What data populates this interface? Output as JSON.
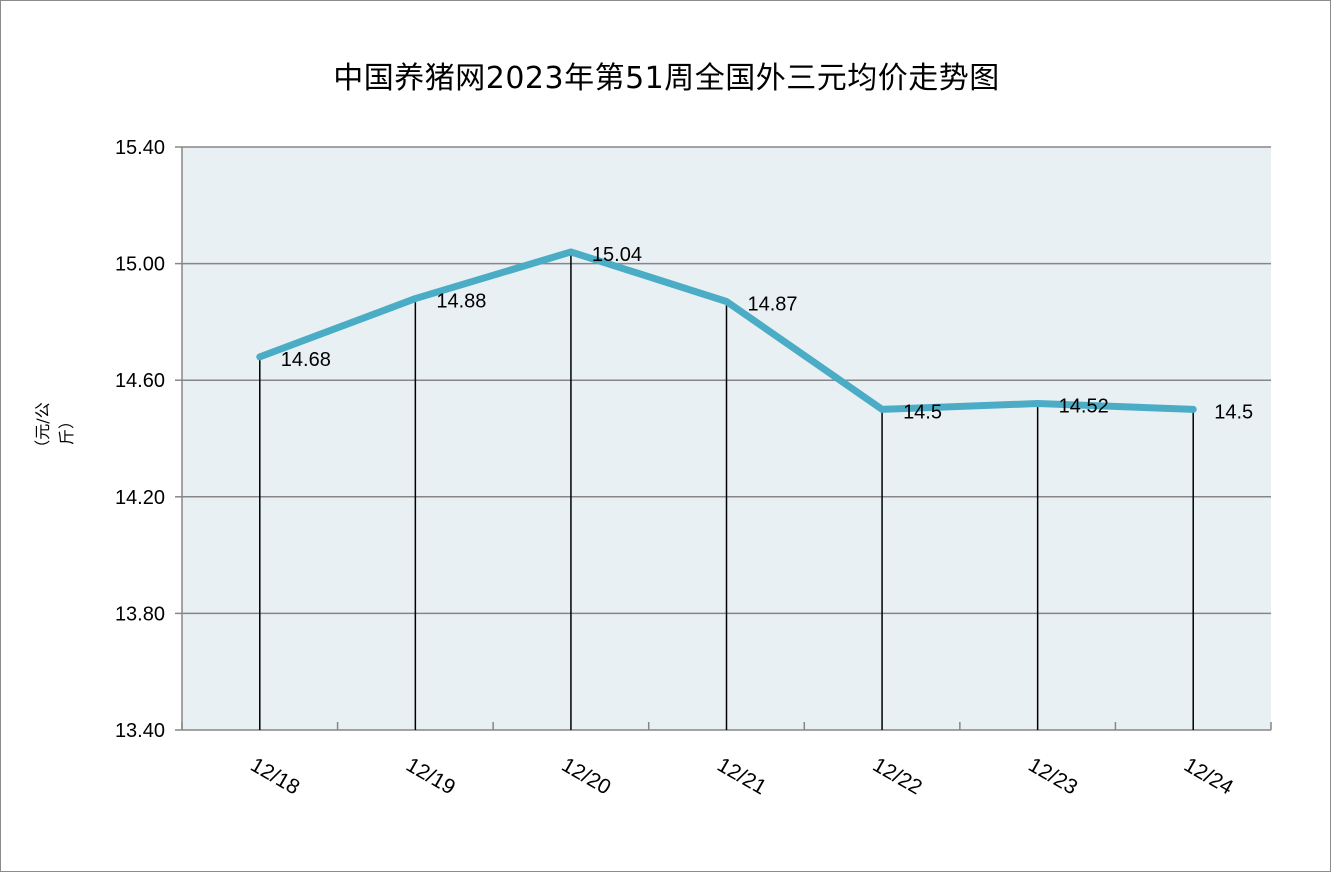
{
  "chart_data": {
    "type": "line",
    "title": "中国养猪网2023年第51周全国外三元均价走势图",
    "ylabel": "（元/公斤）",
    "xlabel": "",
    "categories": [
      "12/18",
      "12/19",
      "12/20",
      "12/21",
      "12/22",
      "12/23",
      "12/24"
    ],
    "series": [
      {
        "values": [
          14.68,
          14.88,
          15.04,
          14.87,
          14.5,
          14.52,
          14.5
        ],
        "data_labels": [
          "14.68",
          "14.88",
          "15.04",
          "14.87",
          "14.5",
          "14.52",
          "14.5"
        ],
        "color": "#4bacc6"
      }
    ],
    "ylim": [
      13.4,
      15.4
    ],
    "yticks": [
      "13.40",
      "13.80",
      "14.20",
      "14.60",
      "15.00",
      "15.40"
    ],
    "ytick_values": [
      13.4,
      13.8,
      14.2,
      14.6,
      15.0,
      15.4
    ],
    "grid": true,
    "drop_lines": true,
    "plot_background": "#e9f0f3",
    "gridline_color": "#868686",
    "legend": "none"
  }
}
